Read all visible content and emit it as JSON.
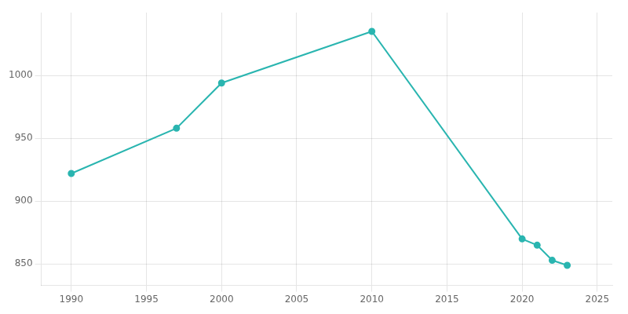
{
  "chart_data": {
    "type": "line",
    "x": [
      1990,
      1997,
      2000,
      2010,
      2020,
      2021,
      2022,
      2023
    ],
    "values": [
      922,
      958,
      994,
      1035,
      870,
      865,
      853,
      849
    ],
    "color": "#2ab5b0",
    "marker": "circle",
    "xlim": [
      1988,
      2026
    ],
    "ylim": [
      833,
      1050
    ],
    "xticks": [
      1990,
      1995,
      2000,
      2005,
      2010,
      2015,
      2020,
      2025
    ],
    "yticks": [
      850,
      900,
      950,
      1000
    ],
    "grid": true
  }
}
